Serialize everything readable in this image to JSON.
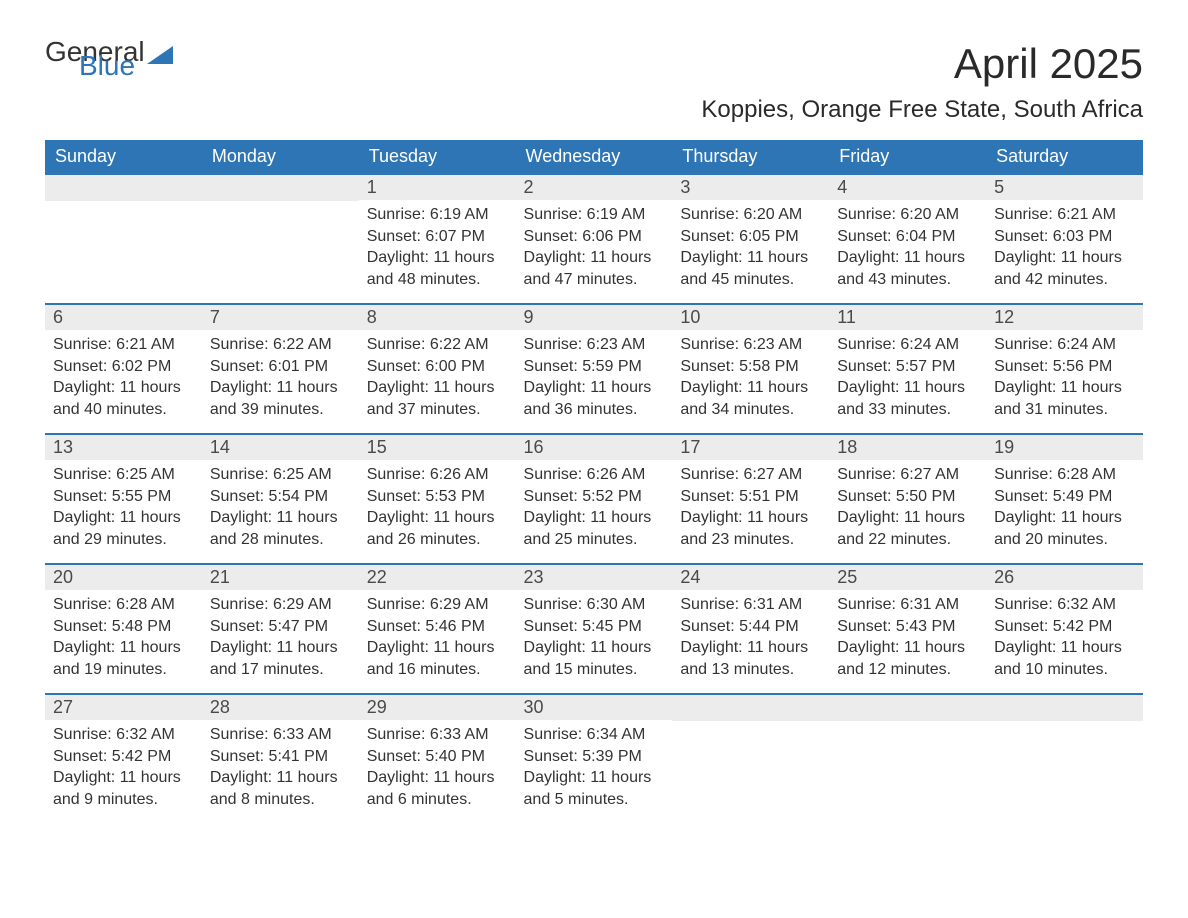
{
  "logo": {
    "text1": "General",
    "text2": "Blue"
  },
  "title": "April 2025",
  "location": "Koppies, Orange Free State, South Africa",
  "colors": {
    "header_bg": "#2e75b6",
    "header_text": "#ffffff",
    "daynum_bg": "#ececec",
    "row_border": "#2e75b6",
    "body_text": "#333333",
    "page_bg": "#ffffff"
  },
  "fonts": {
    "title_size_pt": 32,
    "location_size_pt": 18,
    "header_size_pt": 14,
    "daynum_size_pt": 14,
    "body_size_pt": 12
  },
  "day_headers": [
    "Sunday",
    "Monday",
    "Tuesday",
    "Wednesday",
    "Thursday",
    "Friday",
    "Saturday"
  ],
  "weeks": [
    [
      {
        "n": "",
        "sr": "",
        "ss": "",
        "dl": ""
      },
      {
        "n": "",
        "sr": "",
        "ss": "",
        "dl": ""
      },
      {
        "n": "1",
        "sr": "6:19 AM",
        "ss": "6:07 PM",
        "dl": "11 hours and 48 minutes."
      },
      {
        "n": "2",
        "sr": "6:19 AM",
        "ss": "6:06 PM",
        "dl": "11 hours and 47 minutes."
      },
      {
        "n": "3",
        "sr": "6:20 AM",
        "ss": "6:05 PM",
        "dl": "11 hours and 45 minutes."
      },
      {
        "n": "4",
        "sr": "6:20 AM",
        "ss": "6:04 PM",
        "dl": "11 hours and 43 minutes."
      },
      {
        "n": "5",
        "sr": "6:21 AM",
        "ss": "6:03 PM",
        "dl": "11 hours and 42 minutes."
      }
    ],
    [
      {
        "n": "6",
        "sr": "6:21 AM",
        "ss": "6:02 PM",
        "dl": "11 hours and 40 minutes."
      },
      {
        "n": "7",
        "sr": "6:22 AM",
        "ss": "6:01 PM",
        "dl": "11 hours and 39 minutes."
      },
      {
        "n": "8",
        "sr": "6:22 AM",
        "ss": "6:00 PM",
        "dl": "11 hours and 37 minutes."
      },
      {
        "n": "9",
        "sr": "6:23 AM",
        "ss": "5:59 PM",
        "dl": "11 hours and 36 minutes."
      },
      {
        "n": "10",
        "sr": "6:23 AM",
        "ss": "5:58 PM",
        "dl": "11 hours and 34 minutes."
      },
      {
        "n": "11",
        "sr": "6:24 AM",
        "ss": "5:57 PM",
        "dl": "11 hours and 33 minutes."
      },
      {
        "n": "12",
        "sr": "6:24 AM",
        "ss": "5:56 PM",
        "dl": "11 hours and 31 minutes."
      }
    ],
    [
      {
        "n": "13",
        "sr": "6:25 AM",
        "ss": "5:55 PM",
        "dl": "11 hours and 29 minutes."
      },
      {
        "n": "14",
        "sr": "6:25 AM",
        "ss": "5:54 PM",
        "dl": "11 hours and 28 minutes."
      },
      {
        "n": "15",
        "sr": "6:26 AM",
        "ss": "5:53 PM",
        "dl": "11 hours and 26 minutes."
      },
      {
        "n": "16",
        "sr": "6:26 AM",
        "ss": "5:52 PM",
        "dl": "11 hours and 25 minutes."
      },
      {
        "n": "17",
        "sr": "6:27 AM",
        "ss": "5:51 PM",
        "dl": "11 hours and 23 minutes."
      },
      {
        "n": "18",
        "sr": "6:27 AM",
        "ss": "5:50 PM",
        "dl": "11 hours and 22 minutes."
      },
      {
        "n": "19",
        "sr": "6:28 AM",
        "ss": "5:49 PM",
        "dl": "11 hours and 20 minutes."
      }
    ],
    [
      {
        "n": "20",
        "sr": "6:28 AM",
        "ss": "5:48 PM",
        "dl": "11 hours and 19 minutes."
      },
      {
        "n": "21",
        "sr": "6:29 AM",
        "ss": "5:47 PM",
        "dl": "11 hours and 17 minutes."
      },
      {
        "n": "22",
        "sr": "6:29 AM",
        "ss": "5:46 PM",
        "dl": "11 hours and 16 minutes."
      },
      {
        "n": "23",
        "sr": "6:30 AM",
        "ss": "5:45 PM",
        "dl": "11 hours and 15 minutes."
      },
      {
        "n": "24",
        "sr": "6:31 AM",
        "ss": "5:44 PM",
        "dl": "11 hours and 13 minutes."
      },
      {
        "n": "25",
        "sr": "6:31 AM",
        "ss": "5:43 PM",
        "dl": "11 hours and 12 minutes."
      },
      {
        "n": "26",
        "sr": "6:32 AM",
        "ss": "5:42 PM",
        "dl": "11 hours and 10 minutes."
      }
    ],
    [
      {
        "n": "27",
        "sr": "6:32 AM",
        "ss": "5:42 PM",
        "dl": "11 hours and 9 minutes."
      },
      {
        "n": "28",
        "sr": "6:33 AM",
        "ss": "5:41 PM",
        "dl": "11 hours and 8 minutes."
      },
      {
        "n": "29",
        "sr": "6:33 AM",
        "ss": "5:40 PM",
        "dl": "11 hours and 6 minutes."
      },
      {
        "n": "30",
        "sr": "6:34 AM",
        "ss": "5:39 PM",
        "dl": "11 hours and 5 minutes."
      },
      {
        "n": "",
        "sr": "",
        "ss": "",
        "dl": ""
      },
      {
        "n": "",
        "sr": "",
        "ss": "",
        "dl": ""
      },
      {
        "n": "",
        "sr": "",
        "ss": "",
        "dl": ""
      }
    ]
  ],
  "labels": {
    "sunrise": "Sunrise: ",
    "sunset": "Sunset: ",
    "daylight": "Daylight: "
  }
}
